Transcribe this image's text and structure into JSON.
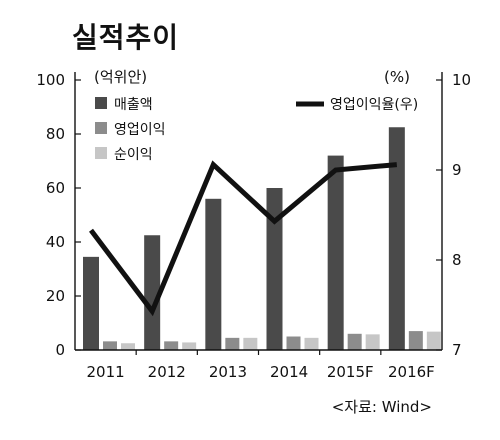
{
  "title": "실적추이",
  "chart_data": {
    "type": "bar",
    "categories": [
      "2011",
      "2012",
      "2013",
      "2014",
      "2015F",
      "2016F"
    ],
    "series": [
      {
        "name": "매출액",
        "values": [
          34.5,
          42.5,
          56,
          60,
          72,
          82.5
        ],
        "color": "#4a4a4a",
        "axis": "left"
      },
      {
        "name": "영업이익",
        "values": [
          3.2,
          3.2,
          4.5,
          5,
          6,
          7
        ],
        "color": "#8c8c8c",
        "axis": "left"
      },
      {
        "name": "순이익",
        "values": [
          2.5,
          2.8,
          4.5,
          4.5,
          5.8,
          6.8
        ],
        "color": "#c6c6c6",
        "axis": "left"
      },
      {
        "name": "영업이익율(우)",
        "type": "line",
        "values": [
          8.33,
          7.43,
          9.06,
          8.43,
          9,
          9.06
        ],
        "color": "#111111",
        "axis": "right"
      }
    ],
    "left_axis": {
      "unit_label": "(억위안)",
      "ylim": [
        0,
        100
      ],
      "ticks": [
        "0",
        "20",
        "40",
        "60",
        "80",
        "100"
      ]
    },
    "right_axis": {
      "unit_label": "(%)",
      "ylim": [
        7,
        10
      ],
      "ticks": [
        "7",
        "8",
        "9",
        "10"
      ]
    },
    "legend_position": "top",
    "grid": false
  },
  "source": "<자료: Wind>"
}
